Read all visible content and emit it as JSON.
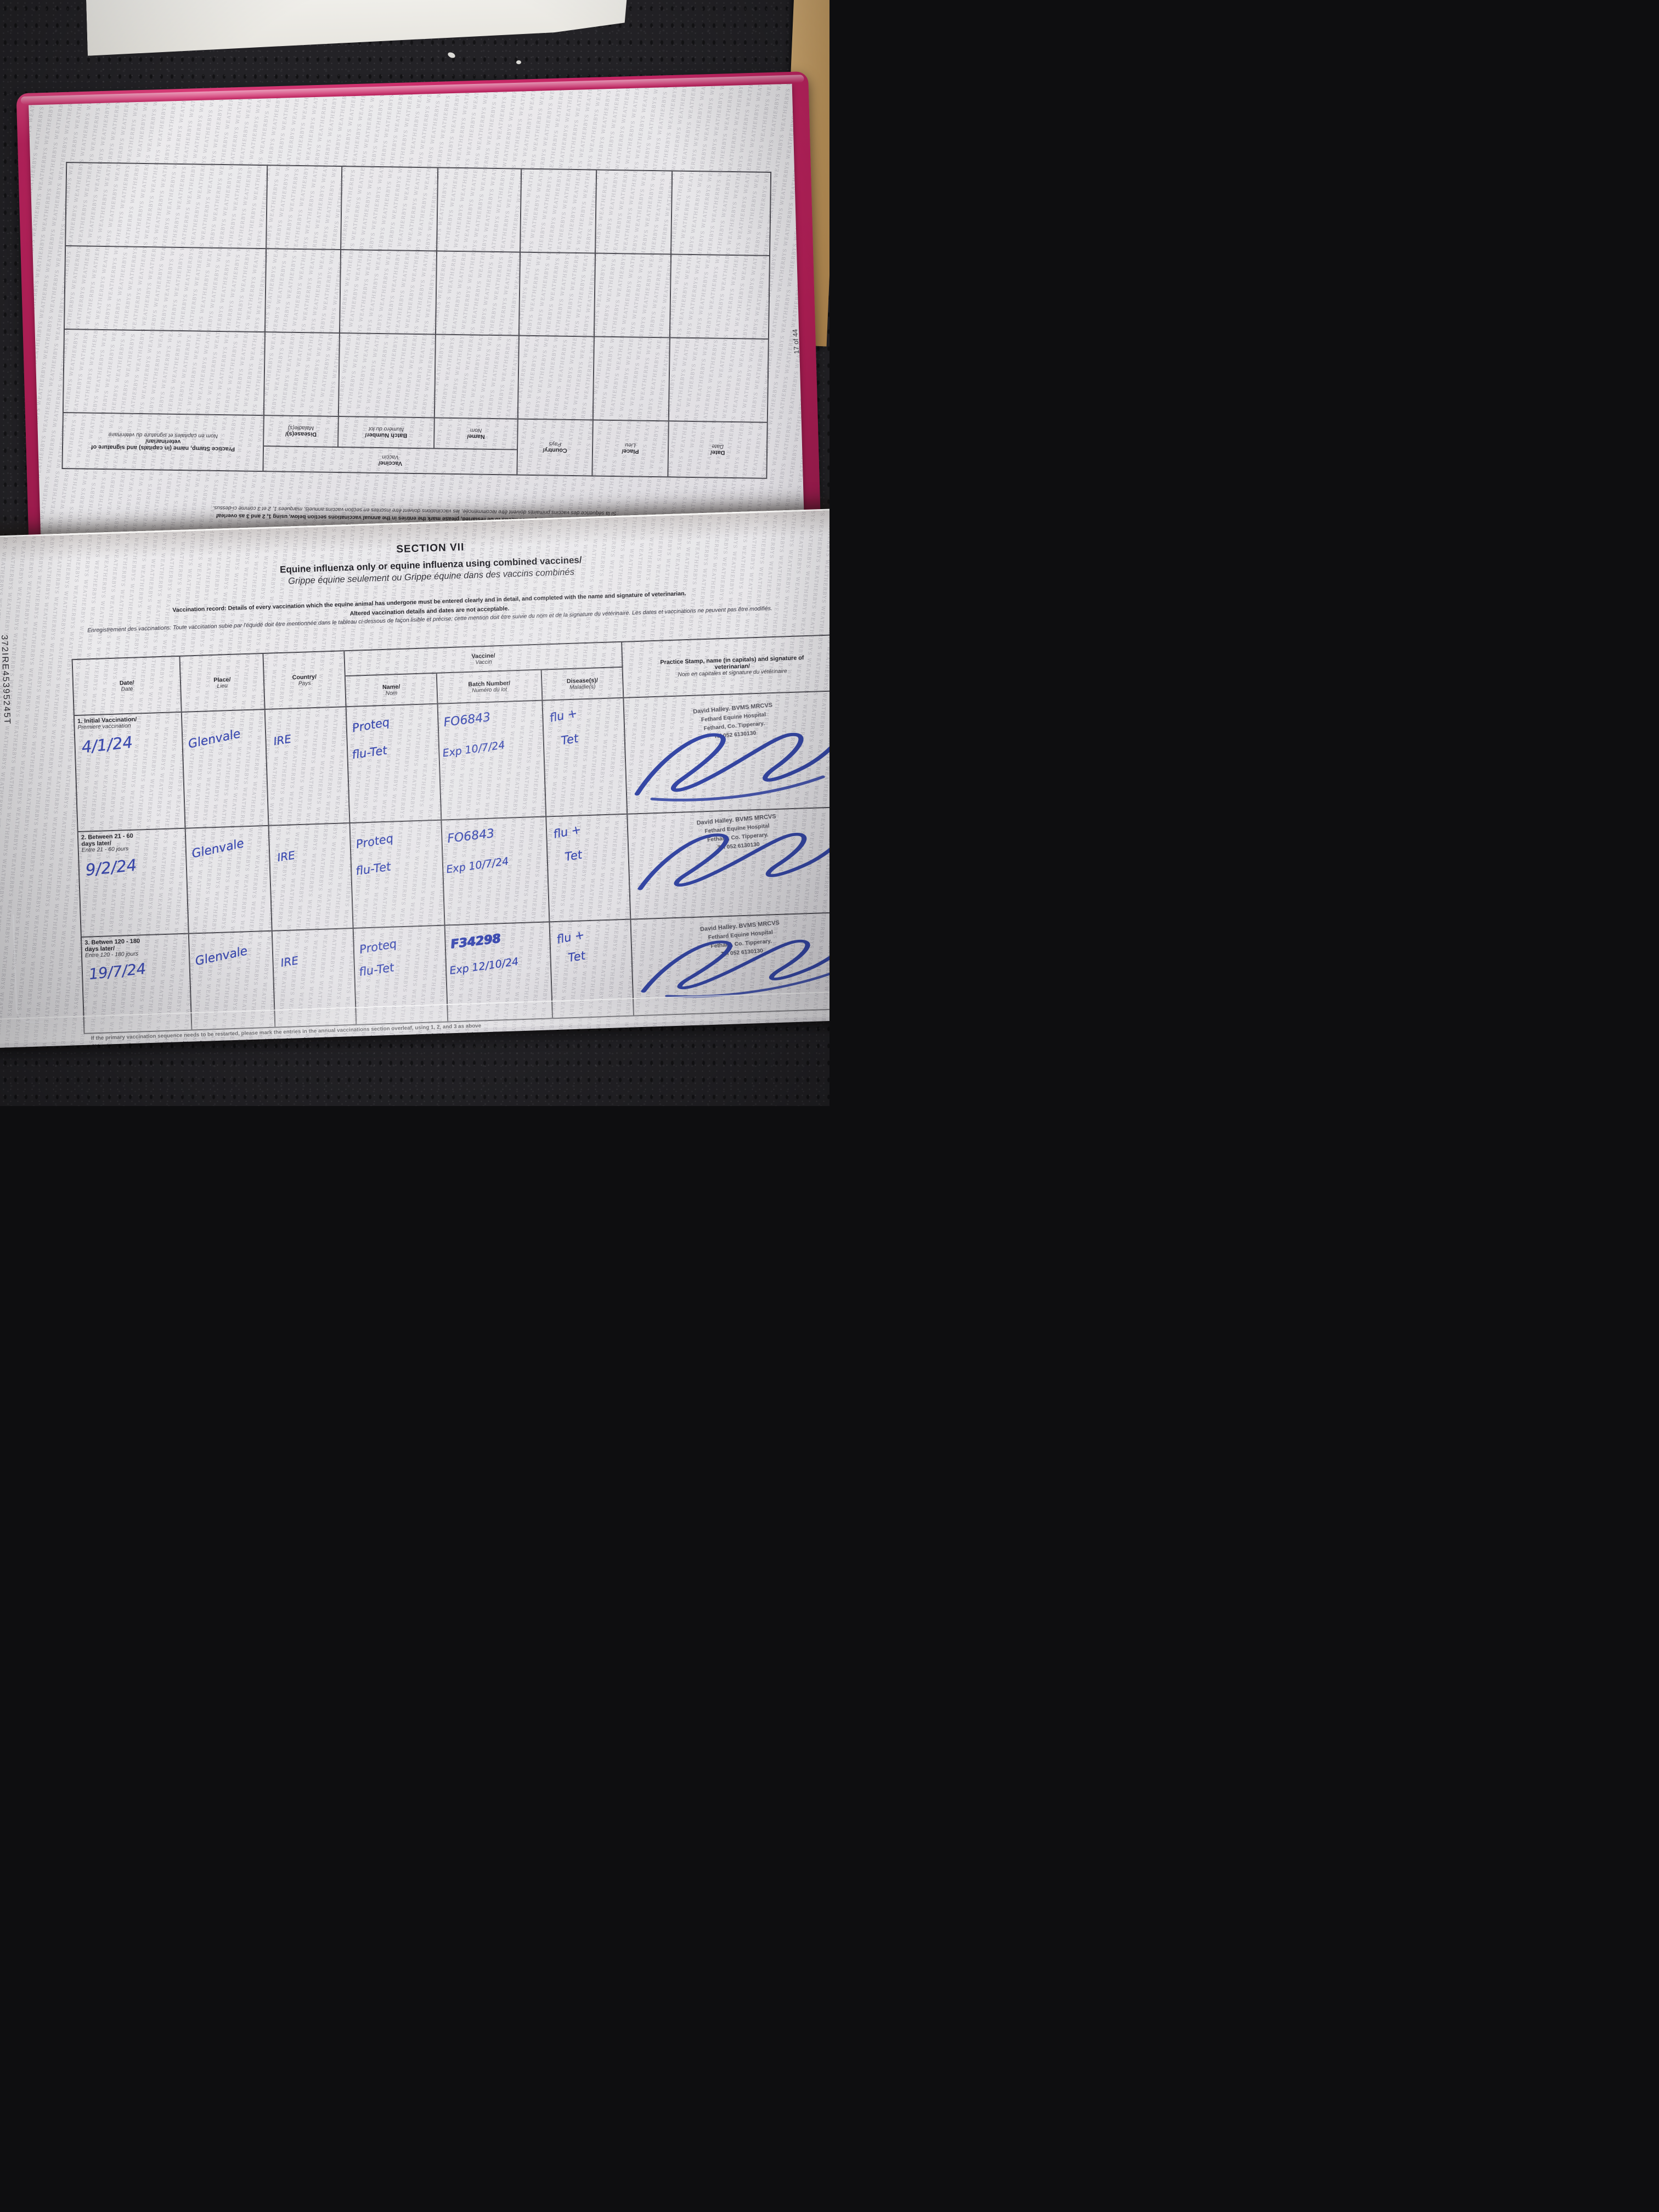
{
  "colors": {
    "cover_pink": "#c42563",
    "page_grey": "#e9e8ea",
    "ink_blue": "#3c4bb0",
    "stamp_grey": "#54535c",
    "counter_dark": "#232226",
    "wood_tan": "#c49a5e",
    "watermark_grey": "#7a7885"
  },
  "watermark_word": "WEATHERBYS",
  "passport_id": "372IRE45395245T",
  "vaccination_table_headers": {
    "date_en": "Date/",
    "date_fr": "Date",
    "place_en": "Place/",
    "place_fr": "Lieu",
    "country_en": "Country/",
    "country_fr": "Pays",
    "vaccine_en": "Vaccine/",
    "vaccine_fr": "Vaccin",
    "name_en": "Name/",
    "name_fr": "Nom",
    "batch_en": "Batch Number/",
    "batch_fr": "Numéro du lot",
    "disease_en": "Disease(s)/",
    "disease_fr": "Maladie(s)",
    "stamp_en1": "Practice Stamp, name (in capitals) and signature of",
    "stamp_en2": "veterinarian/",
    "stamp_fr": "Nom en capitales et signature du vétérinaire"
  },
  "top_page": {
    "page_number": "17 of 44",
    "notes": {
      "altered_en": "Altered vaccination details and dates are not acceptable.",
      "altered_fr": "Les dates et vaccinations ne peuvent pas être modifiés",
      "restart_en": "If the primary vaccination sequence needs to be restarted, please mark the entries in the annual vaccinations section below, using 1, 2 and 3 as overleaf",
      "restart_fr": "Si la séquence des vaccins primaires doivent être recommencée, les vaccinations doivent être inscrites en section vaccins annuels, marquées 1, 2 et 3 comme ci-dessus."
    }
  },
  "section7": {
    "title": "SECTION VII",
    "heading_en": "Equine influenza only or equine influenza using combined vaccines/",
    "heading_fr": "Grippe équine seulement ou Grippe équine dans des vaccins combinés",
    "intro_en": "Vaccination record: Details of every vaccination which the equine animal has undergone must be entered clearly and in detail, and completed with the name and signature of veterinarian.",
    "intro_bold": "Altered vaccination details and dates are not acceptable.",
    "intro_fr": "Enregistrement des vaccinations: Toute vaccination subie par l'équidé doit être mentionnée dans le tableau ci-dessous de façon lisible et précise; cette mention doit être suivie du nom et de la signature du vétérinaire. Les dates et vaccinations ne peuvent pas être modifiés.",
    "footer_en": "If the primary vaccination sequence needs to be restarted, please mark the entries in the annual vaccinations section overleaf, using 1, 2, and 3 as above",
    "footer_fr": "Si la séquence des vaccins, primaires doivent être recommencée, les vaccinations doivent être inscrites en section vaccins annuels, marquées 1, 2 et 3 comme ci-dessus",
    "stamp": {
      "line1": "David Halley. BVMS MRCVS",
      "line2": "Fethard Equine Hospital",
      "line3": "Fethard, Co. Tipperary.",
      "line4": "Tel 052 6130130"
    },
    "rows": [
      {
        "label_en": "1. Initial Vaccination/",
        "label_en2": null,
        "label_fr": "Premiere vaccination",
        "date": "4/1/24",
        "place": "Glenvale",
        "country": "IRE",
        "vaccine_name1": "Proteq",
        "vaccine_name2": "flu-Tet",
        "batch1": "FO6843",
        "batch2": "Exp 10/7/24",
        "disease1": "flu +",
        "disease2": "Tet"
      },
      {
        "label_en": "2. Between 21 - 60",
        "label_en2": "days later/",
        "label_fr": "Entre 21 - 60 jours",
        "date": "9/2/24",
        "place": "Glenvale",
        "country": "IRE",
        "vaccine_name1": "Proteq",
        "vaccine_name2": "flu-Tet",
        "batch1": "FO6843",
        "batch2": "Exp 10/7/24",
        "disease1": "flu +",
        "disease2": "Tet"
      },
      {
        "label_en": "3. Betwen 120 - 180",
        "label_en2": "days later/",
        "label_fr": "Entre 120 - 180 jours",
        "date": "19/7/24",
        "place": "Glenvale",
        "country": "IRE",
        "vaccine_name1": "Proteq",
        "vaccine_name2": "flu-Tet",
        "batch1": "F34298",
        "batch2": "Exp 12/10/24",
        "disease1": "flu +",
        "disease2": "Tet"
      }
    ]
  }
}
